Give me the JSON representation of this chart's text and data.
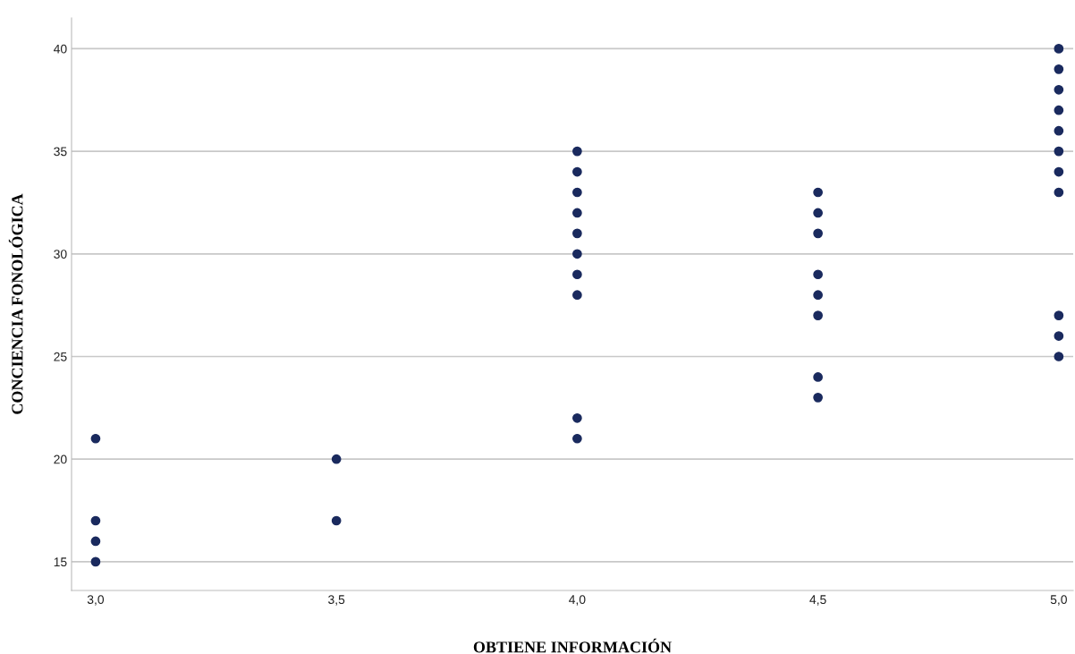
{
  "chart_data": {
    "type": "scatter",
    "xlabel": "OBTIENE INFORMACIÓN",
    "ylabel": "CONCIENCIA FONOLÓGICA",
    "x": [
      3,
      3,
      3,
      3,
      3.5,
      3.5,
      4,
      4,
      4,
      4,
      4,
      4,
      4,
      4,
      4,
      4,
      4.5,
      4.5,
      4.5,
      4.5,
      4.5,
      4.5,
      4.5,
      4.5,
      5,
      5,
      5,
      5,
      5,
      5,
      5,
      5,
      5,
      5,
      5
    ],
    "series": [
      {
        "color": "#1a2a5e",
        "values": [
          21,
          17,
          16,
          15,
          20,
          17,
          35,
          34,
          33,
          32,
          31,
          30,
          29,
          28,
          22,
          21,
          33,
          32,
          31,
          29,
          28,
          27,
          24,
          23,
          40,
          39,
          38,
          37,
          36,
          35,
          34,
          33,
          27,
          26,
          25
        ]
      }
    ],
    "marker": "circle",
    "xlim": [
      2.95,
      5.03
    ],
    "ylim": [
      13.6,
      41.5
    ],
    "xticks": [
      {
        "value": 3,
        "label": "3,0"
      },
      {
        "value": 3.5,
        "label": "3,5"
      },
      {
        "value": 4,
        "label": "4,0"
      },
      {
        "value": 4.5,
        "label": "4,5"
      },
      {
        "value": 5,
        "label": "5,0"
      }
    ],
    "yticks": [
      15,
      20,
      25,
      30,
      35,
      40
    ],
    "grid": "y"
  }
}
